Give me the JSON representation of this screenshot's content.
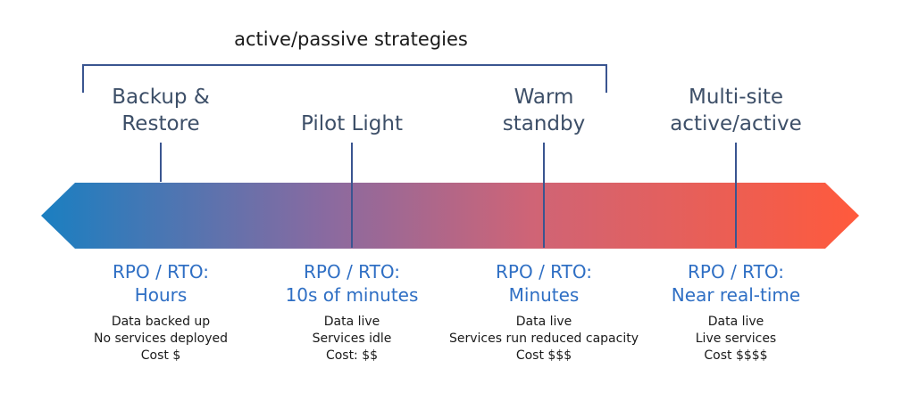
{
  "bracket": {
    "label": "active/passive strategies"
  },
  "strategies": [
    {
      "name_lines": [
        "Backup &",
        "Restore"
      ],
      "rpo_label": "RPO / RTO:",
      "rpo_value": "Hours",
      "details": [
        "Data backed up",
        "No services deployed",
        "Cost $"
      ]
    },
    {
      "name_lines": [
        "Pilot Light"
      ],
      "rpo_label": "RPO / RTO:",
      "rpo_value": "10s of minutes",
      "details": [
        "Data live",
        "Services idle",
        "Cost: $$"
      ]
    },
    {
      "name_lines": [
        "Warm",
        "standby"
      ],
      "rpo_label": "RPO / RTO:",
      "rpo_value": "Minutes",
      "details": [
        "Data live",
        "Services run reduced capacity",
        "Cost $$$"
      ]
    },
    {
      "name_lines": [
        "Multi-site",
        "active/active"
      ],
      "rpo_label": "RPO / RTO:",
      "rpo_value": "Near real-time",
      "details": [
        "Data live",
        "Live services",
        "Cost $$$$"
      ]
    }
  ],
  "colors": {
    "gradient_start": "#1a7fc1",
    "gradient_mid": "#b5648e",
    "gradient_end": "#ff5a3c",
    "accent": "#2f6fc4"
  }
}
